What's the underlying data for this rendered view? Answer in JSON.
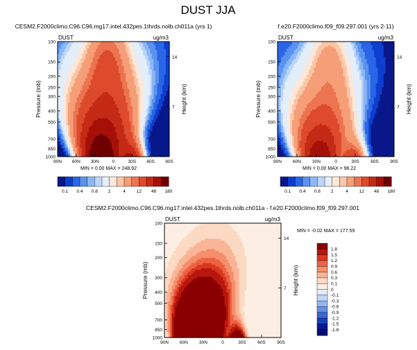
{
  "figure": {
    "main_title": "DUST JJA"
  },
  "chart_data": [
    {
      "type": "contour",
      "panel": "top-left",
      "title": "CESM2.F2000climo.C96.C96.mg17.intel.432pes.1thrds.nolb.ch011a (yrs 1)",
      "left_label": "DUST",
      "right_label": "ug/m3",
      "ylabel": "Pressure (mb)",
      "y2label": "Height (km)",
      "x_ticks": [
        "90N",
        "60N",
        "30N",
        "0",
        "30S",
        "60S",
        "90S"
      ],
      "y_ticks": [
        "100",
        "150",
        "200",
        "250",
        "300",
        "400",
        "500",
        "700",
        "850",
        "1000"
      ],
      "y2_ticks": [
        "14",
        "7"
      ],
      "min_label": "MIN =",
      "min_value": "0.00",
      "max_label": "MAX =",
      "max_value": "248.92",
      "plume_peak": {
        "lat": 20,
        "pressure": 900
      }
    },
    {
      "type": "contour",
      "panel": "top-right",
      "title": "f.e20.F2000climo.f09_f09.297.001 (yrs 2-11)",
      "left_label": "DUST",
      "right_label": "ug/m3",
      "ylabel": "Pressure (mb)",
      "y2label": "Height (km)",
      "x_ticks": [
        "90N",
        "60N",
        "30N",
        "0",
        "30S",
        "60S",
        "90S"
      ],
      "y_ticks": [
        "100",
        "150",
        "200",
        "250",
        "300",
        "400",
        "500",
        "700",
        "850",
        "1000"
      ],
      "y2_ticks": [
        "14",
        "7"
      ],
      "min_label": "MIN =",
      "min_value": "0.00",
      "max_label": "MAX =",
      "max_value": "96.22",
      "plume_peak": {
        "lat": 25,
        "pressure": 900
      }
    },
    {
      "type": "contour",
      "panel": "bottom-difference",
      "title": "CESM2.F2000climo.C96.C96.mg17.intel.432pes.1thrds.nolb.ch011a - f.e20.F2000climo.f09_f09.297.001",
      "left_label": "DUST",
      "right_label": "ug/m3",
      "ylabel": "Pressure (mb)",
      "y2label": "Height (km)",
      "x_ticks": [
        "90N",
        "60N",
        "30N",
        "0",
        "30S",
        "60S",
        "90S"
      ],
      "y_ticks": [
        "100",
        "150",
        "200",
        "300",
        "400",
        "500",
        "700",
        "850",
        "1000"
      ],
      "y2_ticks": [
        "14",
        "7"
      ],
      "min_label": "MIN =",
      "min_value": "-0.02",
      "max_label": "MAX =",
      "max_value": "177.59"
    }
  ],
  "colorbar_top": {
    "labels": [
      "0.1",
      "0.4",
      "0.8",
      "2",
      "4",
      "12",
      "48",
      "180"
    ],
    "colors": [
      "#08178a",
      "#0d3fcf",
      "#2a66e6",
      "#5b92ef",
      "#8cb7f5",
      "#bcd6f8",
      "#e3eefb",
      "#fde7d8",
      "#fbc6a6",
      "#f59e77",
      "#ec7450",
      "#dd4a2c",
      "#c42a15",
      "#a51108",
      "#6e0000"
    ]
  },
  "colorbar_diff": {
    "labels": [
      "1.8",
      "1.5",
      "1.2",
      "0.9",
      "0.6",
      "0.3",
      "0.1",
      "0",
      "-0.1",
      "-0.3",
      "-0.6",
      "-0.9",
      "-1.2",
      "-1.5",
      "-1.8"
    ],
    "colors": [
      "#8a0000",
      "#b8170d",
      "#d9381f",
      "#ec6245",
      "#f58e6b",
      "#fab596",
      "#fcd9c3",
      "#fdeee3",
      "#e3edfa",
      "#bfd6f5",
      "#93b6ef",
      "#6691e4",
      "#3b66d3",
      "#173fb7",
      "#08199a",
      "#050f6a"
    ]
  }
}
